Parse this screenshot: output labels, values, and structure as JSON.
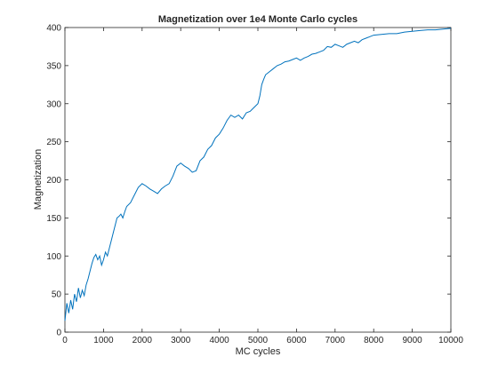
{
  "chart_data": {
    "type": "line",
    "title": "Magnetization over 1e4 Monte Carlo cycles",
    "xlabel": "MC cycles",
    "ylabel": "Magnetization",
    "xlim": [
      0,
      10000
    ],
    "ylim": [
      0,
      400
    ],
    "xticks": [
      0,
      1000,
      2000,
      3000,
      4000,
      5000,
      6000,
      7000,
      8000,
      9000,
      10000
    ],
    "yticks": [
      0,
      50,
      100,
      150,
      200,
      250,
      300,
      350,
      400
    ],
    "grid": false,
    "legend": "none",
    "series_color": "#0072BD",
    "series": [
      {
        "name": "",
        "x": [
          0,
          50,
          100,
          150,
          200,
          250,
          300,
          350,
          400,
          450,
          500,
          550,
          600,
          650,
          700,
          750,
          800,
          850,
          900,
          950,
          1000,
          1050,
          1100,
          1150,
          1200,
          1250,
          1300,
          1350,
          1400,
          1450,
          1500,
          1550,
          1600,
          1700,
          1800,
          1900,
          2000,
          2100,
          2200,
          2300,
          2400,
          2500,
          2600,
          2700,
          2800,
          2900,
          3000,
          3100,
          3200,
          3300,
          3400,
          3500,
          3600,
          3700,
          3800,
          3900,
          4000,
          4100,
          4200,
          4300,
          4400,
          4500,
          4600,
          4700,
          4800,
          4900,
          5000,
          5050,
          5100,
          5150,
          5200,
          5300,
          5400,
          5500,
          5600,
          5700,
          5800,
          5900,
          6000,
          6100,
          6200,
          6300,
          6400,
          6500,
          6600,
          6700,
          6800,
          6900,
          7000,
          7100,
          7200,
          7300,
          7400,
          7500,
          7600,
          7700,
          7800,
          7900,
          8000,
          8200,
          8400,
          8600,
          8800,
          9000,
          9200,
          9400,
          9600,
          9800,
          10000
        ],
        "values": [
          15,
          38,
          25,
          42,
          30,
          50,
          40,
          58,
          45,
          55,
          48,
          62,
          70,
          80,
          90,
          98,
          102,
          95,
          100,
          88,
          95,
          105,
          100,
          110,
          120,
          130,
          140,
          150,
          152,
          155,
          150,
          158,
          165,
          170,
          180,
          190,
          195,
          192,
          188,
          185,
          182,
          188,
          192,
          195,
          205,
          218,
          222,
          218,
          215,
          210,
          212,
          225,
          230,
          240,
          245,
          255,
          260,
          268,
          278,
          285,
          282,
          285,
          280,
          288,
          290,
          295,
          300,
          310,
          325,
          332,
          338,
          342,
          346,
          350,
          352,
          355,
          356,
          358,
          360,
          357,
          360,
          362,
          365,
          366,
          368,
          370,
          375,
          374,
          378,
          376,
          374,
          378,
          380,
          382,
          380,
          384,
          386,
          388,
          390,
          391,
          392,
          392,
          394,
          395,
          396,
          397,
          397,
          398,
          399
        ]
      }
    ]
  }
}
